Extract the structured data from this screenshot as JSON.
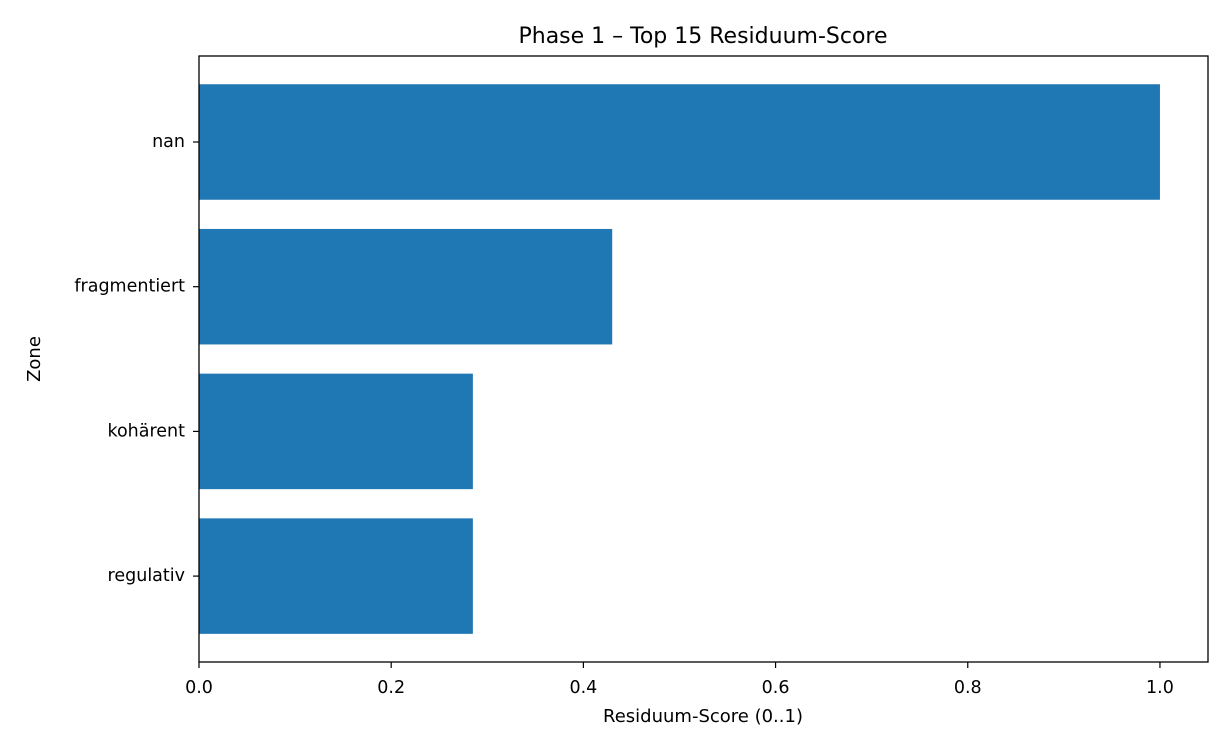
{
  "chart_data": {
    "type": "bar",
    "orientation": "horizontal",
    "title": "Phase 1 – Top 15 Residuum-Score",
    "xlabel": "Residuum-Score (0..1)",
    "ylabel": "Zone",
    "categories": [
      "nan",
      "fragmentiert",
      "kohärent",
      "regulativ"
    ],
    "values": [
      1.0,
      0.43,
      0.285,
      0.285
    ],
    "xlim": [
      0,
      1.05
    ],
    "xticks": [
      0.0,
      0.2,
      0.4,
      0.6,
      0.8,
      1.0
    ],
    "xtick_labels": [
      "0.0",
      "0.2",
      "0.4",
      "0.6",
      "0.8",
      "1.0"
    ],
    "grid": false,
    "legend": "none",
    "bar_color": "#1f77b4"
  }
}
